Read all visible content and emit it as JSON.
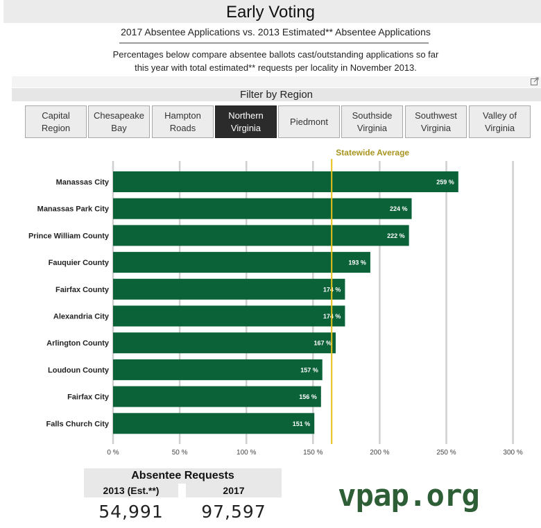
{
  "header": {
    "title": "Early Voting",
    "subtitle": "2017 Absentee Applications vs. 2013 Estimated** Absentee Applications",
    "description_line1": "Percentages below compare absentee ballots cast/outstanding applications so far",
    "description_line2": "this year with total estimated** requests per locality in November 2013."
  },
  "filter": {
    "label": "Filter by Region",
    "regions": [
      "Capital\nRegion",
      "Chesapeake\nBay",
      "Hampton\nRoads",
      "Northern\nVirginia",
      "Piedmont",
      "Southside\nVirginia",
      "Southwest\nVirginia",
      "Valley of\nVirginia"
    ],
    "selected": "Northern\nVirginia"
  },
  "colors": {
    "bar": "#0b6238",
    "average_line": "#e8c21a",
    "average_label": "#a8941f",
    "grid": "#cfcfcf"
  },
  "chart_data": {
    "type": "bar",
    "orientation": "horizontal",
    "categories": [
      "Manassas City",
      "Manassas Park City",
      "Prince William County",
      "Fauquier County",
      "Fairfax County",
      "Alexandria City",
      "Arlington County",
      "Loudoun County",
      "Fairfax City",
      "Falls Church City"
    ],
    "values": [
      259,
      224,
      222,
      193,
      174,
      174,
      167,
      157,
      156,
      151
    ],
    "value_labels": [
      "259 %",
      "224 %",
      "222 %",
      "193 %",
      "174 %",
      "174 %",
      "167 %",
      "157 %",
      "156 %",
      "151 %"
    ],
    "xlim": [
      0,
      300
    ],
    "ticks": [
      0,
      50,
      100,
      150,
      200,
      250,
      300
    ],
    "tick_labels": [
      "0 %",
      "50 %",
      "100 %",
      "150 %",
      "200 %",
      "250 %",
      "300 %"
    ],
    "reference_line": {
      "label": "Statewide Average",
      "value": 164
    },
    "grid": true
  },
  "absentee": {
    "title": "Absentee Requests",
    "col1_label": "2013 (Est.**)",
    "col1_value": "54,991",
    "col2_label": "2017",
    "col2_value": "97,597"
  },
  "brand": {
    "logo_text": "vpap.org"
  }
}
